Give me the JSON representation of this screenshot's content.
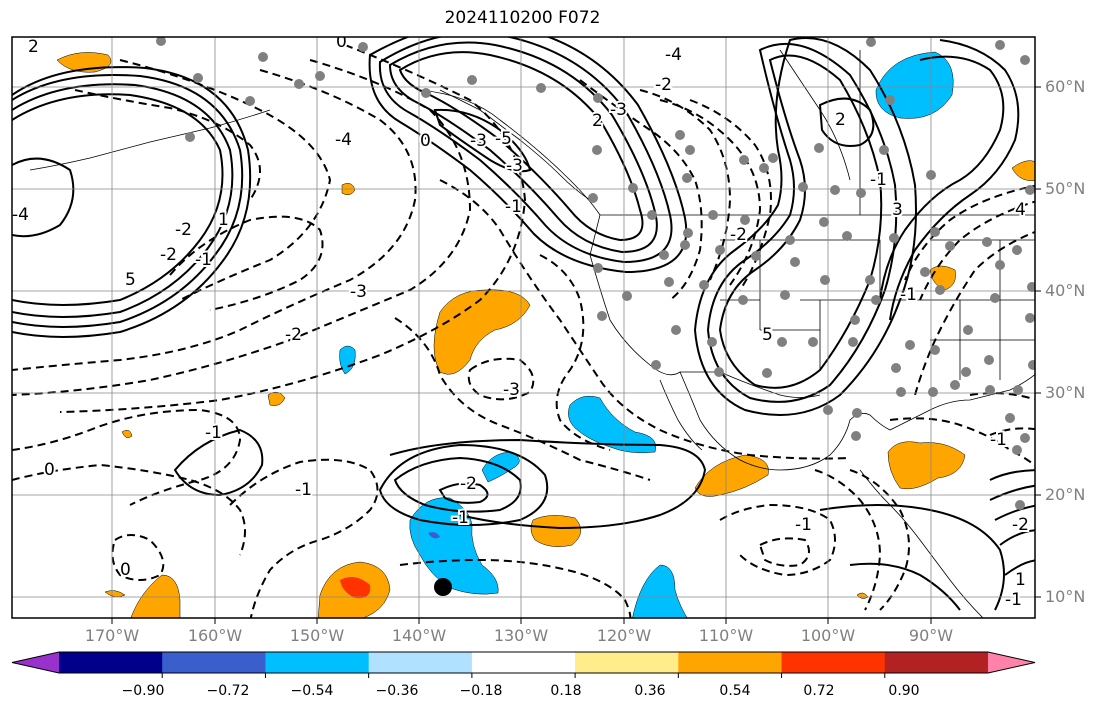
{
  "map": {
    "title": "2024110200 F072",
    "lat_labels": [
      "60°N",
      "50°N",
      "40°N",
      "30°N",
      "20°N",
      "10°N"
    ],
    "lon_labels": [
      "170°W",
      "160°W",
      "150°W",
      "140°W",
      "130°W",
      "120°W",
      "110°W",
      "100°W",
      "90°W"
    ],
    "contour_labels": [
      "2",
      "0",
      "-5",
      "-4",
      "-4",
      "5",
      "-3",
      "-2",
      "-1",
      "0",
      "-1",
      "-1",
      "-3",
      "-2",
      "-3",
      "2",
      "0",
      "-3",
      "-2",
      "-1",
      "0",
      "-2",
      "-1",
      "1",
      "-1",
      "-1",
      "5",
      "3",
      "-1",
      "-2",
      "-2",
      "-2",
      "2",
      "-1",
      "-3",
      "-1",
      "-4",
      "4",
      "1"
    ],
    "shading_colors": {
      "negative_strong": "#3a5fcd",
      "negative": "#00bfff",
      "positive": "#ffa500",
      "positive_strong": "#ff3300"
    }
  },
  "colorbar": {
    "tick_labels": [
      "−0.90",
      "−0.72",
      "−0.54",
      "−0.36",
      "−0.18",
      "0.18",
      "0.36",
      "0.54",
      "0.72",
      "0.90"
    ],
    "colors": [
      "#9932cc",
      "#00008b",
      "#3a5fcd",
      "#00bfff",
      "#b0e2ff",
      "#ffffff",
      "#ffec8b",
      "#ffa500",
      "#ff3300",
      "#b22222",
      "#ff82ab"
    ]
  }
}
